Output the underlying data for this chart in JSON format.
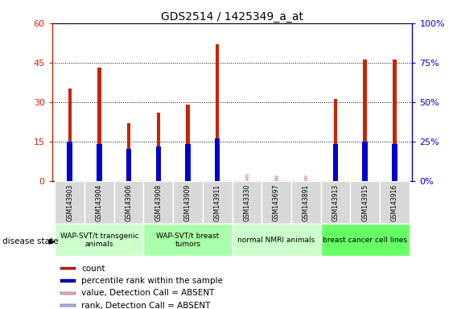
{
  "title": "GDS2514 / 1425349_a_at",
  "samples": [
    "GSM143903",
    "GSM143904",
    "GSM143906",
    "GSM143908",
    "GSM143909",
    "GSM143911",
    "GSM143330",
    "GSM143697",
    "GSM143891",
    "GSM143913",
    "GSM143915",
    "GSM143916"
  ],
  "count_values": [
    35,
    43,
    22,
    26,
    29,
    52,
    0,
    0,
    0,
    31,
    46,
    46
  ],
  "rank_values": [
    15,
    14,
    12,
    13,
    14,
    16,
    0,
    0,
    0,
    14,
    15,
    14
  ],
  "absent_count": [
    0,
    0,
    0,
    0,
    0,
    0,
    2.5,
    2.0,
    2.0,
    0,
    0,
    0
  ],
  "absent_rank": [
    0,
    0,
    0,
    0,
    0,
    0,
    1.5,
    1.5,
    1.5,
    0,
    0,
    0
  ],
  "detection_absent": [
    false,
    false,
    false,
    false,
    false,
    false,
    true,
    true,
    true,
    false,
    false,
    false
  ],
  "groups": [
    {
      "label": "WAP-SVT/t transgenic\nanimals",
      "start": 0,
      "end": 3,
      "color": "#ccffcc"
    },
    {
      "label": "WAP-SVT/t breast\ntumors",
      "start": 3,
      "end": 6,
      "color": "#aaffaa"
    },
    {
      "label": "normal NMRI animals",
      "start": 6,
      "end": 9,
      "color": "#ccffcc"
    },
    {
      "label": "breast cancer cell lines",
      "start": 9,
      "end": 12,
      "color": "#66ff66"
    }
  ],
  "ylim_left": [
    0,
    60
  ],
  "ylim_right": [
    0,
    100
  ],
  "yticks_left": [
    0,
    15,
    30,
    45,
    60
  ],
  "ytick_labels_left": [
    "0",
    "15",
    "30",
    "45",
    "60"
  ],
  "yticks_right": [
    0,
    25,
    50,
    75,
    100
  ],
  "ytick_labels_right": [
    "0%",
    "25%",
    "50%",
    "75%",
    "100%"
  ],
  "bar_color_count": "#cc2200",
  "bar_color_rank": "#0000cc",
  "bar_color_absent_count": "#ffbbbb",
  "bar_color_absent_rank": "#bbbbff",
  "bar_width": 0.12,
  "rank_dot_size": 40,
  "legend_items": [
    {
      "color": "#cc2200",
      "label": "count"
    },
    {
      "color": "#0000cc",
      "label": "percentile rank within the sample"
    },
    {
      "color": "#ffbbbb",
      "label": "value, Detection Call = ABSENT"
    },
    {
      "color": "#bbbbff",
      "label": "rank, Detection Call = ABSENT"
    }
  ]
}
